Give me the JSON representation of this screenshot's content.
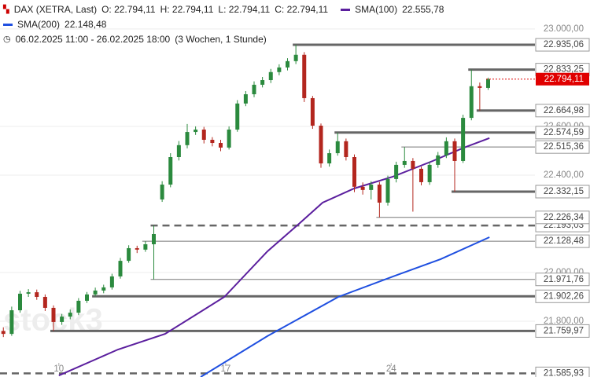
{
  "chart_data": {
    "type": "candlestick",
    "header": {
      "ohlc_labels": [
        "O: 22.794,11",
        "H: 22.794,11",
        "L: 22.794,11",
        "C: 22.794,11"
      ],
      "range": "06.02.2025 11:00 - 26.02.2025 18:00",
      "period": "(3 Wochen, 1 Stunde)"
    },
    "watermark": "stock3",
    "xlim": [
      0,
      160
    ],
    "xticks": [
      {
        "value": 17.6,
        "label": "10"
      },
      {
        "value": 67.5,
        "label": "17"
      },
      {
        "value": 117,
        "label": "24"
      }
    ],
    "ylim": [
      21571,
      23119
    ],
    "yticks": [
      {
        "value": 23000,
        "label": "23.000,00"
      },
      {
        "value": 22600,
        "label": "22.600,00"
      },
      {
        "value": 22400,
        "label": "22.400,00"
      },
      {
        "value": 22000,
        "label": "22.000,00"
      },
      {
        "value": 21800,
        "label": "21.800,00"
      }
    ],
    "grid": true,
    "series": [
      {
        "name": "DAX (XETRA, Last)",
        "up_color": "#2b8a3e",
        "down_color": "#b3261e",
        "x": [
          1,
          3.5,
          6,
          8.5,
          11,
          13.5,
          16,
          18.5,
          21,
          23.5,
          26,
          28.5,
          31,
          33.5,
          36,
          38.5,
          41,
          43.5,
          46,
          48.5,
          51,
          53.5,
          56,
          58.5,
          61,
          63.5,
          66,
          68.5,
          71,
          73.5,
          76,
          78.5,
          81,
          83.5,
          86,
          88.5,
          91,
          93.5,
          96,
          98.5,
          101,
          103.5,
          106,
          108.5,
          111,
          113.5,
          116,
          118.5,
          121,
          123.5,
          126,
          128.5,
          131,
          133.5,
          136,
          138.5,
          141,
          143.5,
          146
        ],
        "open": [
          21760,
          21748,
          21845,
          21913,
          21919,
          21900,
          21855,
          21797,
          21819,
          21835,
          21884,
          21910,
          21926,
          21939,
          21984,
          22048,
          22100,
          22094,
          22116,
          22300,
          22361,
          22474,
          22523,
          22577,
          22587,
          22545,
          22532,
          22513,
          22587,
          22694,
          22732,
          22771,
          22790,
          22823,
          22842,
          22868,
          22894,
          22716,
          22603,
          22448,
          22490,
          22539,
          22474,
          22352,
          22339,
          22361,
          22287,
          22384,
          22442,
          22458,
          22426,
          22371,
          22442,
          22481,
          22539,
          22458,
          22635,
          22765,
          22758
        ],
        "high": [
          21775,
          21860,
          21925,
          21932,
          21930,
          21910,
          21865,
          21830,
          21848,
          21895,
          21920,
          21938,
          21950,
          21995,
          22060,
          22112,
          22110,
          22128.48,
          22193.03,
          22375,
          22490,
          22540,
          22610,
          22600,
          22598,
          22556,
          22545,
          22600,
          22708,
          22745,
          22785,
          22803,
          22836,
          22855,
          22880,
          22935.06,
          22905,
          22725,
          22612,
          22505,
          22574.59,
          22550,
          22485,
          22370,
          22375,
          22372,
          22398,
          22455,
          22515.36,
          22470,
          22435,
          22455,
          22495,
          22555,
          22550,
          22648,
          22833.25,
          22780,
          22800
        ],
        "low": [
          21735,
          21740,
          21835,
          21900,
          21888,
          21842,
          21759.97,
          21785,
          21808,
          21825,
          21875,
          21902.26,
          21915,
          21930,
          21975,
          22040,
          22080,
          22085,
          21971.76,
          22290,
          22350,
          22460,
          22510,
          22565,
          22530,
          22518,
          22498,
          22505,
          22578,
          22683,
          22720,
          22760,
          22778,
          22810,
          22830,
          22856,
          22700,
          22590,
          22430,
          22435,
          22480,
          22460,
          22330,
          22320,
          22300,
          22226.34,
          22275,
          22370,
          22430,
          22250,
          22358,
          22360,
          22430,
          22470,
          22332.15,
          22450,
          22625,
          22664.98,
          22750
        ],
        "close": [
          21748,
          21845,
          21913,
          21919,
          21900,
          21855,
          21797,
          21819,
          21835,
          21884,
          21910,
          21926,
          21939,
          21984,
          22048,
          22100,
          22094,
          22116,
          22158,
          22361,
          22474,
          22523,
          22577,
          22587,
          22545,
          22532,
          22513,
          22587,
          22694,
          22732,
          22771,
          22790,
          22823,
          22842,
          22868,
          22894,
          22716,
          22603,
          22448,
          22490,
          22539,
          22474,
          22352,
          22339,
          22361,
          22287,
          22384,
          22442,
          22458,
          22426,
          22371,
          22442,
          22481,
          22539,
          22458,
          22635,
          22765,
          22758,
          22794.11
        ]
      },
      {
        "name": "SMA(100)",
        "color": "#5b1f9e",
        "last": 22555.78,
        "last_label": "22.555,78",
        "x": [
          17.6,
          35.3,
          49.4,
          67.1,
          80,
          89.4,
          96.5,
          105.9,
          117.6,
          129.4,
          138.8,
          146.4
        ],
        "values": [
          21577,
          21684,
          21748,
          21900,
          22087,
          22200,
          22287,
          22345,
          22394,
          22458,
          22513,
          22552
        ]
      },
      {
        "name": "SMA(200)",
        "color": "#1f4fe0",
        "last": 22148.48,
        "last_label": "22.148,48",
        "x": [
          60,
          80,
          101.2,
          117.6,
          131.8,
          146.4
        ],
        "values": [
          21571,
          21739,
          21900,
          21984,
          22055,
          22145
        ]
      }
    ],
    "levels": [
      {
        "value": 21585.93,
        "label": "21.585,93",
        "style": "dashed"
      },
      {
        "value": 22193.03,
        "label": "22.193,03",
        "style": "dashed"
      },
      {
        "value": 22935.06,
        "label": "22.935,06",
        "style": "thick"
      },
      {
        "value": 22833.25,
        "label": "22.833,25",
        "style": "thick"
      },
      {
        "value": 22664.98,
        "label": "22.664,98",
        "style": "thick"
      },
      {
        "value": 22574.59,
        "label": "22.574,59",
        "style": "thick"
      },
      {
        "value": 22515.36,
        "label": "22.515,36",
        "style": "thin"
      },
      {
        "value": 22332.15,
        "label": "22.332,15",
        "style": "thick"
      },
      {
        "value": 22226.34,
        "label": "22.226,34",
        "style": "thin"
      },
      {
        "value": 22128.48,
        "label": "22.128,48",
        "style": "thin"
      },
      {
        "value": 21971.76,
        "label": "21.971,76",
        "style": "thin"
      },
      {
        "value": 21902.26,
        "label": "21.902,26",
        "style": "thick"
      },
      {
        "value": 21759.97,
        "label": "21.759,97",
        "style": "thick"
      }
    ],
    "last_price": {
      "value": 22794.11,
      "label": "22.794,11",
      "color": "#e00000"
    }
  }
}
